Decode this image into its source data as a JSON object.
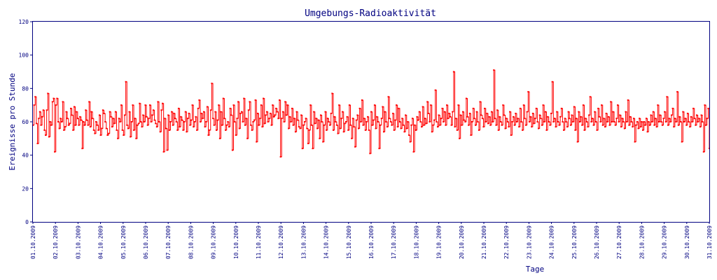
{
  "chart_data": {
    "type": "line",
    "title": "Umgebungs-Radioaktivität",
    "xlabel": "Tage",
    "ylabel": "Ereignisse pro Stunde",
    "ylim": [
      0,
      120
    ],
    "yticks": [
      "0",
      "20",
      "40",
      "60",
      "80",
      "100",
      "120"
    ],
    "xlim": [
      "01.10.2009",
      "31.10.2009"
    ],
    "xticks": [
      "01.10.2009",
      "02.10.2009",
      "03.10.2009",
      "04.10.2009",
      "05.10.2009",
      "06.10.2009",
      "07.10.2009",
      "08.10.2009",
      "09.10.2009",
      "10.10.2009",
      "11.10.2009",
      "12.10.2009",
      "13.10.2009",
      "14.10.2009",
      "15.10.2009",
      "16.10.2009",
      "17.10.2009",
      "18.10.2009",
      "19.10.2009",
      "20.10.2009",
      "21.10.2009",
      "22.10.2009",
      "23.10.2009",
      "24.10.2009",
      "25.10.2009",
      "26.10.2009",
      "27.10.2009",
      "28.10.2009",
      "29.10.2009",
      "30.10.2009",
      "31.10.2009"
    ],
    "grid": false,
    "series_color": "#ff0000",
    "axis_color": "#000080",
    "sampling": "hourly",
    "series": [
      {
        "x_start": "01.10.2009 00:00",
        "values": [
          58,
          70,
          75,
          59,
          47,
          62,
          66,
          58,
          63,
          67,
          55,
          52,
          67,
          77,
          51,
          60,
          58,
          72,
          74,
          42,
          70,
          74,
          60,
          56,
          62,
          60,
          72,
          55,
          57,
          66,
          62,
          58,
          59,
          68,
          64,
          55,
          69,
          58,
          66,
          62,
          58,
          63,
          61,
          44,
          60,
          58,
          67,
          61,
          58,
          72,
          57,
          66,
          62,
          55,
          53,
          60,
          58,
          55,
          64,
          52,
          56,
          67,
          65,
          60,
          56,
          52,
          53,
          66,
          63,
          57,
          62,
          59,
          66,
          55,
          50,
          62,
          60,
          70,
          55,
          52,
          64,
          84,
          58,
          56,
          66,
          51,
          60,
          70,
          55,
          62,
          50,
          58,
          59,
          71,
          60,
          57,
          64,
          60,
          70,
          63,
          58,
          62,
          70,
          60,
          64,
          67,
          61,
          59,
          57,
          72,
          60,
          54,
          67,
          71,
          42,
          62,
          56,
          43,
          64,
          55,
          60,
          66,
          58,
          65,
          62,
          60,
          55,
          68,
          57,
          63,
          61,
          55,
          60,
          66,
          54,
          62,
          65,
          58,
          61,
          70,
          57,
          60,
          63,
          55,
          68,
          73,
          60,
          65,
          62,
          66,
          57,
          60,
          69,
          52,
          55,
          67,
          83,
          62,
          58,
          66,
          55,
          61,
          70,
          50,
          66,
          58,
          74,
          62,
          55,
          58,
          60,
          57,
          68,
          64,
          43,
          70,
          60,
          52,
          62,
          72,
          56,
          65,
          66,
          60,
          74,
          58,
          62,
          50,
          67,
          72,
          58,
          55,
          60,
          61,
          73,
          48,
          65,
          58,
          62,
          70,
          57,
          74,
          59,
          64,
          66,
          60,
          62,
          65,
          58,
          70,
          63,
          64,
          68,
          66,
          62,
          73,
          39,
          62,
          66,
          60,
          72,
          64,
          70,
          56,
          63,
          60,
          68,
          58,
          62,
          54,
          66,
          61,
          57,
          56,
          64,
          44,
          58,
          60,
          62,
          56,
          47,
          55,
          70,
          58,
          44,
          66,
          59,
          62,
          56,
          61,
          50,
          64,
          60,
          48,
          58,
          66,
          55,
          62,
          60,
          58,
          65,
          77,
          55,
          63,
          60,
          58,
          53,
          70,
          56,
          62,
          66,
          54,
          59,
          60,
          63,
          55,
          70,
          58,
          50,
          62,
          57,
          45,
          61,
          64,
          56,
          68,
          60,
          73,
          58,
          62,
          55,
          60,
          63,
          55,
          41,
          66,
          58,
          61,
          70,
          56,
          63,
          60,
          44,
          58,
          62,
          69,
          54,
          66,
          60,
          57,
          75,
          62,
          60,
          58,
          65,
          55,
          61,
          70,
          57,
          68,
          60,
          56,
          62,
          58,
          54,
          64,
          56,
          60,
          52,
          48,
          58,
          62,
          42,
          58,
          55,
          63,
          61,
          66,
          60,
          57,
          69,
          58,
          62,
          59,
          72,
          65,
          60,
          70,
          54,
          58,
          61,
          79,
          60,
          57,
          64,
          58,
          62,
          68,
          60,
          66,
          58,
          70,
          62,
          65,
          63,
          58,
          66,
          90,
          57,
          62,
          55,
          70,
          50,
          64,
          58,
          66,
          61,
          60,
          74,
          63,
          58,
          65,
          52,
          60,
          68,
          62,
          58,
          66,
          60,
          55,
          72,
          64,
          62,
          57,
          68,
          60,
          65,
          59,
          63,
          58,
          66,
          60,
          91,
          62,
          58,
          67,
          55,
          63,
          60,
          58,
          70,
          64,
          56,
          62,
          60,
          57,
          66,
          52,
          60,
          63,
          58,
          65,
          60,
          62,
          57,
          68,
          60,
          55,
          70,
          62,
          58,
          66,
          78,
          60,
          63,
          57,
          65,
          59,
          62,
          68,
          60,
          56,
          64,
          62,
          58,
          70,
          60,
          66,
          55,
          63,
          60,
          58,
          65,
          84,
          60,
          62,
          57,
          66,
          60,
          58,
          63,
          68,
          60,
          55,
          62,
          60,
          57,
          66,
          62,
          58,
          64,
          60,
          69,
          55,
          62,
          48,
          66,
          60,
          63,
          58,
          70,
          55,
          62,
          60,
          57,
          64,
          75,
          60,
          62,
          58,
          66,
          60,
          55,
          68,
          63,
          60,
          70,
          58,
          62,
          57,
          65,
          60,
          63,
          58,
          72,
          60,
          66,
          60,
          58,
          62,
          70,
          60,
          64,
          57,
          62,
          60,
          56,
          66,
          60,
          73,
          58,
          63,
          60,
          57,
          62,
          48,
          58,
          60,
          56,
          62,
          57,
          60,
          55,
          60,
          58,
          62,
          54,
          60,
          58,
          64,
          60,
          66,
          58,
          62,
          57,
          70,
          60,
          64,
          60,
          58,
          62,
          66,
          60,
          75,
          58,
          62,
          60,
          64,
          68,
          57,
          62,
          60,
          78,
          58,
          63,
          60,
          48,
          66,
          60,
          62,
          58,
          65,
          60,
          57,
          63,
          60,
          68,
          62,
          58,
          64,
          60,
          62,
          57,
          64,
          60,
          42,
          70,
          58,
          62,
          68,
          44
        ]
      }
    ]
  }
}
